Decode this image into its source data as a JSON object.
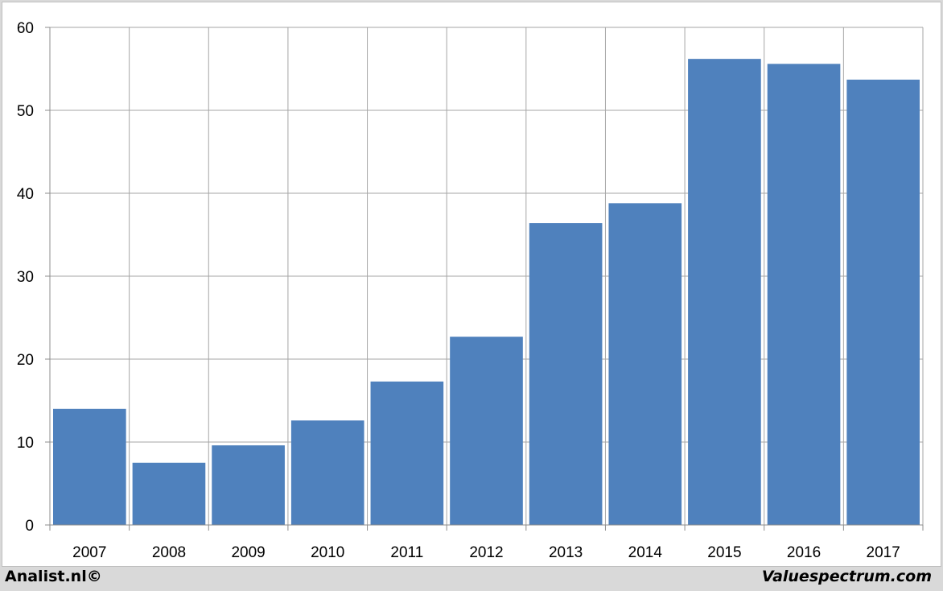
{
  "chart_data": {
    "type": "bar",
    "categories": [
      "2007",
      "2008",
      "2009",
      "2010",
      "2011",
      "2012",
      "2013",
      "2014",
      "2015",
      "2016",
      "2017"
    ],
    "values": [
      14.0,
      7.5,
      9.6,
      12.6,
      17.3,
      22.7,
      36.4,
      38.8,
      56.2,
      55.6,
      53.7
    ],
    "title": "",
    "xlabel": "",
    "ylabel": "",
    "ylim": [
      0,
      60
    ],
    "yticks": [
      "0",
      "10",
      "20",
      "30",
      "40",
      "50",
      "60"
    ],
    "grid": true,
    "bar_color": "#4f81bd",
    "grid_color": "#a6a6a6"
  },
  "footer": {
    "left": "Analist.nl©",
    "right": "Valuespectrum.com"
  }
}
